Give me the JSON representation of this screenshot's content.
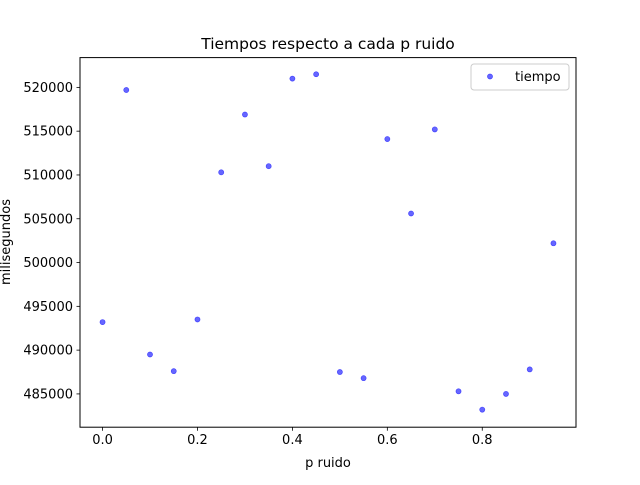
{
  "chart_data": {
    "type": "scatter",
    "title": "Tiempos respecto a cada p ruido",
    "xlabel": "p ruido",
    "ylabel": "milisegundos",
    "xlim": [
      -0.0475,
      0.9975
    ],
    "ylim": [
      481200,
      523400
    ],
    "xticks": [
      0.0,
      0.2,
      0.4,
      0.6,
      0.8
    ],
    "xtick_labels": [
      "0.0",
      "0.2",
      "0.4",
      "0.6",
      "0.8"
    ],
    "yticks": [
      485000,
      490000,
      495000,
      500000,
      505000,
      510000,
      515000,
      520000
    ],
    "ytick_labels": [
      "485000",
      "490000",
      "495000",
      "500000",
      "505000",
      "510000",
      "515000",
      "520000"
    ],
    "grid": false,
    "legend_position": "top-right",
    "series": [
      {
        "name": "tiempo",
        "color": "#0000ff",
        "marker": "circle",
        "points": [
          [
            0.0,
            493200
          ],
          [
            0.05,
            519700
          ],
          [
            0.1,
            489500
          ],
          [
            0.15,
            487600
          ],
          [
            0.2,
            493500
          ],
          [
            0.25,
            510300
          ],
          [
            0.3,
            516900
          ],
          [
            0.35,
            511000
          ],
          [
            0.4,
            521000
          ],
          [
            0.45,
            521500
          ],
          [
            0.5,
            487500
          ],
          [
            0.55,
            486800
          ],
          [
            0.6,
            514100
          ],
          [
            0.65,
            505600
          ],
          [
            0.7,
            515200
          ],
          [
            0.75,
            485300
          ],
          [
            0.8,
            483200
          ],
          [
            0.85,
            485000
          ],
          [
            0.9,
            487800
          ],
          [
            0.95,
            502200
          ]
        ]
      }
    ]
  }
}
